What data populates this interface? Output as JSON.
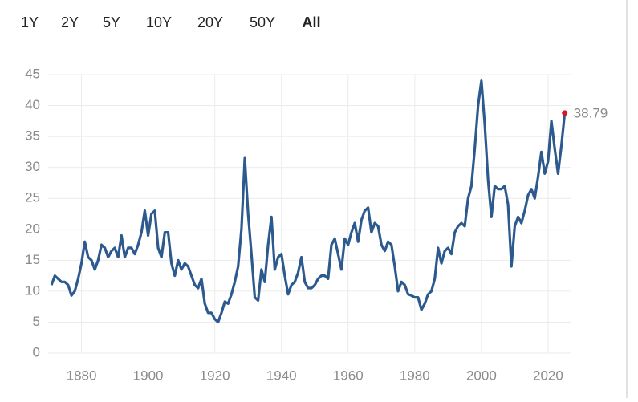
{
  "range_buttons": {
    "labels": [
      "1Y",
      "2Y",
      "5Y",
      "10Y",
      "20Y",
      "50Y",
      "All"
    ],
    "selected": 6
  },
  "chart_data": {
    "type": "line",
    "xlim": [
      1870,
      2027
    ],
    "xticks": [
      1880,
      1900,
      1920,
      1940,
      1960,
      1980,
      2000,
      2020
    ],
    "ylim": [
      0,
      45
    ],
    "yticks": [
      0,
      5,
      10,
      15,
      20,
      25,
      30,
      35,
      40,
      45
    ],
    "grid": true,
    "last_point_color": "#d7152b",
    "series": [
      {
        "color": "#2d5a8e",
        "x": [
          1871,
          1872,
          1873,
          1874,
          1875,
          1876,
          1877,
          1878,
          1879,
          1880,
          1881,
          1882,
          1883,
          1884,
          1885,
          1886,
          1887,
          1888,
          1889,
          1890,
          1891,
          1892,
          1893,
          1894,
          1895,
          1896,
          1897,
          1898,
          1899,
          1900,
          1901,
          1902,
          1903,
          1904,
          1905,
          1906,
          1907,
          1908,
          1909,
          1910,
          1911,
          1912,
          1913,
          1914,
          1915,
          1916,
          1917,
          1918,
          1919,
          1920,
          1921,
          1922,
          1923,
          1924,
          1925,
          1926,
          1927,
          1928,
          1929,
          1930,
          1931,
          1932,
          1933,
          1934,
          1935,
          1936,
          1937,
          1938,
          1939,
          1940,
          1941,
          1942,
          1943,
          1944,
          1945,
          1946,
          1947,
          1948,
          1949,
          1950,
          1951,
          1952,
          1953,
          1954,
          1955,
          1956,
          1957,
          1958,
          1959,
          1960,
          1961,
          1962,
          1963,
          1964,
          1965,
          1966,
          1967,
          1968,
          1969,
          1970,
          1971,
          1972,
          1973,
          1974,
          1975,
          1976,
          1977,
          1978,
          1979,
          1980,
          1981,
          1982,
          1983,
          1984,
          1985,
          1986,
          1987,
          1988,
          1989,
          1990,
          1991,
          1992,
          1993,
          1994,
          1995,
          1996,
          1997,
          1998,
          1999,
          2000,
          2001,
          2002,
          2003,
          2004,
          2005,
          2006,
          2007,
          2008,
          2009,
          2010,
          2011,
          2012,
          2013,
          2014,
          2015,
          2016,
          2017,
          2018,
          2019,
          2020,
          2021,
          2022,
          2023,
          2024,
          2025
        ],
        "values": [
          11,
          12.5,
          12,
          11.5,
          11.5,
          11,
          9.3,
          10,
          12,
          14.5,
          18,
          15.5,
          15,
          13.5,
          15,
          17.5,
          17,
          15.5,
          16.5,
          17,
          15.5,
          19,
          15.5,
          17,
          17,
          16,
          17.5,
          19.5,
          23,
          19,
          22.5,
          23,
          17,
          15.5,
          19.5,
          19.5,
          14.5,
          12.5,
          15,
          13.5,
          14.5,
          14,
          12.5,
          11,
          10.5,
          12,
          8,
          6.5,
          6.5,
          5.5,
          5,
          6.5,
          8.3,
          8,
          9.5,
          11.5,
          14,
          20,
          31.5,
          22.5,
          16,
          9,
          8.5,
          13.5,
          11.5,
          17.5,
          22,
          13.5,
          15.5,
          16,
          12.5,
          9.5,
          11,
          11.5,
          13,
          15.5,
          11.5,
          10.5,
          10.5,
          11,
          12,
          12.5,
          12.5,
          12,
          17.5,
          18.5,
          16,
          13.5,
          18.5,
          17.5,
          19.5,
          21,
          18,
          21.5,
          23,
          23.5,
          19.5,
          21,
          20.5,
          17.5,
          16.5,
          18,
          17.5,
          14,
          10,
          11.5,
          11,
          9.5,
          9.3,
          9,
          9,
          7,
          8,
          9.5,
          10,
          12,
          17,
          14.5,
          16.5,
          17,
          16,
          19.5,
          20.5,
          21,
          20.5,
          25,
          27,
          33,
          40,
          44,
          37,
          28,
          22,
          27,
          26.5,
          26.5,
          27,
          24,
          14,
          20.5,
          22,
          21,
          23,
          25.5,
          26.5,
          25,
          28.5,
          32.5,
          29,
          31,
          37.5,
          33,
          29,
          33.5,
          38.79
        ]
      }
    ]
  }
}
